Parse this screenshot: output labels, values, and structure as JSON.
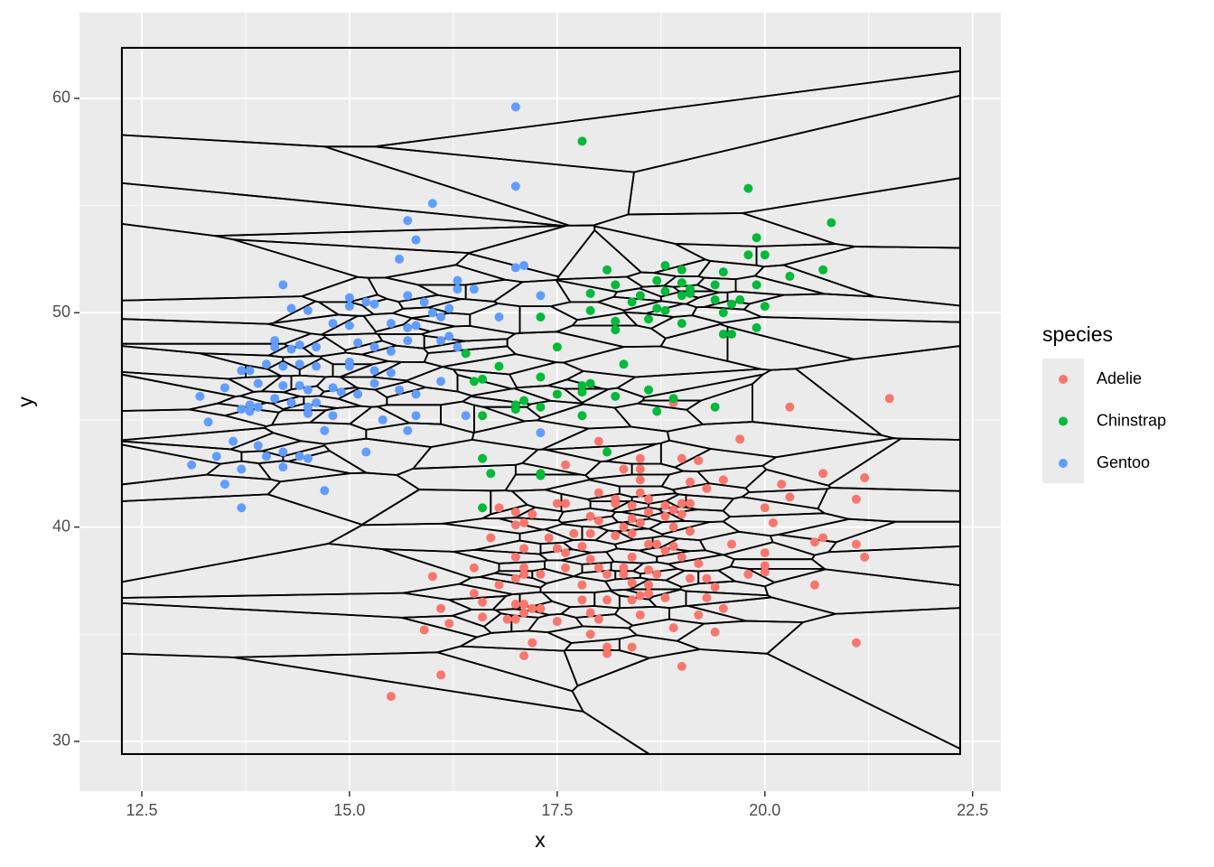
{
  "chart_data": {
    "type": "scatter",
    "x_label": "x",
    "y_label": "y",
    "legend_title": "species",
    "legend": "right",
    "grid": true,
    "voronoi": true,
    "voronoi_xlim": [
      12.26,
      22.35
    ],
    "voronoi_ylim": [
      29.41,
      62.36
    ],
    "xlim": [
      11.75,
      22.84
    ],
    "ylim": [
      27.68,
      64.0
    ],
    "xticks": [
      12.5,
      {
        "value": 15,
        "label": "15.0"
      },
      17.5,
      {
        "value": 20,
        "label": "20.0"
      },
      22.5
    ],
    "yticks": [
      30,
      40,
      50,
      60
    ],
    "series": [
      {
        "name": "Adelie",
        "color": "#F8766D",
        "x": [
          21.5,
          20.3,
          18.9,
          19.7,
          18.0,
          19.0,
          19.2,
          18.5,
          17.6,
          18.3,
          18.5,
          20.7,
          21.2,
          19.5,
          19.1,
          18.5,
          19.3,
          20.2,
          18.0,
          18.2,
          18.5,
          18.6,
          20.3,
          21.1,
          17.5,
          17.6,
          18.2,
          18.4,
          18.8,
          19.0,
          19.1,
          16.8,
          18.9,
          19.0,
          20.0,
          18.8,
          18.6,
          17.0,
          17.2,
          17.9,
          18.0,
          18.4,
          17.1,
          17.0,
          20.1,
          18.5,
          18.3,
          18.9,
          19.1,
          16.7,
          17.4,
          17.7,
          17.9,
          18.2,
          18.4,
          20.7,
          20.6,
          19.6,
          21.1,
          18.6,
          18.7,
          17.1,
          17.5,
          17.6,
          17.8,
          18.8,
          18.9,
          21.2,
          20.0,
          17.9,
          19.0,
          18.4,
          16.5,
          17.0,
          17.1,
          17.6,
          18.0,
          18.3,
          18.6,
          19.2,
          20.0,
          20.0,
          19.8,
          17.1,
          17.3,
          18.1,
          18.3,
          19.1,
          19.3,
          18.7,
          16.0,
          17.0,
          17.8,
          18.4,
          18.6,
          19.4,
          20.6,
          16.5,
          16.8,
          18.5,
          18.6,
          18.8,
          19.3,
          16.6,
          17.0,
          17.1,
          17.8,
          18.1,
          18.4,
          17.2,
          16.1,
          17.3,
          17.1,
          17.9,
          19.5,
          16.6,
          17.0,
          16.9,
          17.5,
          18.0,
          18.5,
          19.2,
          16.2,
          15.9,
          18.9,
          19.4,
          17.9,
          17.2,
          18.1,
          18.4,
          21.1,
          17.1,
          18.1,
          19.0,
          16.1,
          15.5
        ],
        "values": [
          46.0,
          45.6,
          45.8,
          44.1,
          44.0,
          43.2,
          43.1,
          43.2,
          42.9,
          42.7,
          42.7,
          42.5,
          42.3,
          42.2,
          42.1,
          42.2,
          41.8,
          42.0,
          41.6,
          41.3,
          41.6,
          41.3,
          41.4,
          41.3,
          41.1,
          41.1,
          41.1,
          41.0,
          41.0,
          41.1,
          41.1,
          40.9,
          40.8,
          40.6,
          40.9,
          40.5,
          40.7,
          40.7,
          40.6,
          40.5,
          40.3,
          40.4,
          40.2,
          40.1,
          40.2,
          40.2,
          40.0,
          40.0,
          39.8,
          39.5,
          39.5,
          39.7,
          39.7,
          39.6,
          39.7,
          39.5,
          39.3,
          39.2,
          39.2,
          39.2,
          39.2,
          39.0,
          39.0,
          38.8,
          39.1,
          38.9,
          39.1,
          38.6,
          38.8,
          38.5,
          38.6,
          38.6,
          38.1,
          38.6,
          38.1,
          38.1,
          38.1,
          38.1,
          38.0,
          38.3,
          38.2,
          37.9,
          37.8,
          37.8,
          37.8,
          37.8,
          37.8,
          37.6,
          37.6,
          37.8,
          37.7,
          37.6,
          37.3,
          37.4,
          37.3,
          37.2,
          37.3,
          36.9,
          37.3,
          36.8,
          36.9,
          36.7,
          36.7,
          36.5,
          36.4,
          36.4,
          36.6,
          36.6,
          36.6,
          36.2,
          36.2,
          36.2,
          36.0,
          36.0,
          36.2,
          35.8,
          35.7,
          35.7,
          35.6,
          35.7,
          35.9,
          35.9,
          35.5,
          35.2,
          35.3,
          35.1,
          35.0,
          34.6,
          34.4,
          34.4,
          34.6,
          34.0,
          34.1,
          33.5,
          33.1,
          32.1
        ]
      },
      {
        "name": "Chinstrap",
        "color": "#00BA38",
        "x": [
          17.8,
          19.8,
          20.8,
          19.9,
          20.0,
          19.8,
          18.1,
          18.8,
          19.0,
          19.5,
          20.7,
          20.3,
          18.2,
          18.7,
          19.0,
          19.1,
          19.4,
          19.9,
          17.9,
          18.5,
          18.8,
          19.0,
          19.1,
          19.4,
          19.7,
          18.4,
          18.7,
          18.8,
          19.5,
          19.6,
          20.0,
          17.9,
          17.3,
          18.2,
          18.6,
          19.0,
          18.2,
          19.9,
          19.5,
          19.6,
          17.5,
          16.4,
          16.8,
          18.3,
          16.5,
          16.6,
          17.3,
          17.8,
          17.9,
          17.8,
          17.5,
          18.2,
          18.6,
          18.9,
          17.1,
          17.0,
          17.3,
          17.0,
          19.4,
          18.7,
          16.6,
          17.8,
          18.1,
          16.6,
          16.7,
          17.3,
          17.3,
          16.6
        ],
        "values": [
          58.0,
          55.8,
          54.2,
          53.5,
          52.7,
          52.7,
          52.0,
          52.2,
          52.0,
          51.9,
          52.0,
          51.7,
          51.3,
          51.5,
          51.4,
          51.1,
          51.3,
          51.3,
          50.9,
          50.8,
          51.0,
          50.8,
          50.9,
          50.6,
          50.6,
          50.5,
          50.2,
          50.1,
          50.0,
          50.4,
          50.3,
          50.1,
          49.8,
          49.6,
          49.7,
          49.5,
          49.2,
          49.3,
          49.0,
          49.0,
          48.4,
          48.1,
          47.5,
          47.6,
          46.8,
          46.9,
          47.0,
          46.6,
          46.7,
          46.3,
          46.2,
          46.1,
          46.4,
          46.0,
          45.9,
          45.7,
          45.6,
          45.5,
          45.6,
          45.4,
          45.2,
          45.2,
          43.5,
          43.2,
          42.5,
          42.5,
          42.4,
          40.9
        ]
      },
      {
        "name": "Gentoo",
        "color": "#619CFF",
        "x": [
          17.0,
          17.0,
          16.0,
          15.7,
          15.8,
          15.6,
          17.0,
          17.1,
          14.2,
          16.3,
          16.5,
          16.3,
          17.3,
          14.3,
          15.0,
          15.0,
          15.2,
          15.3,
          15.7,
          15.9,
          16.0,
          16.2,
          16.8,
          16.1,
          14.5,
          14.8,
          15.0,
          15.5,
          15.7,
          15.8,
          14.1,
          14.1,
          14.4,
          14.3,
          14.6,
          15.1,
          15.3,
          15.5,
          15.7,
          16.1,
          16.2,
          16.3,
          13.7,
          13.8,
          14.0,
          14.2,
          14.4,
          14.6,
          15.0,
          15.0,
          15.3,
          15.5,
          13.5,
          13.9,
          14.2,
          14.4,
          14.5,
          14.8,
          14.9,
          15.1,
          15.3,
          15.6,
          15.8,
          16.1,
          13.2,
          13.8,
          13.7,
          13.9,
          14.1,
          14.3,
          14.5,
          14.6,
          14.5,
          14.8,
          13.8,
          16.4,
          15.8,
          13.3,
          15.4,
          15.7,
          14.7,
          17.3,
          13.6,
          13.9,
          14.0,
          14.2,
          14.4,
          14.5,
          15.2,
          13.4,
          13.1,
          14.2,
          13.7,
          13.5,
          14.7,
          13.7
        ],
        "values": [
          59.6,
          55.9,
          55.1,
          54.3,
          53.4,
          52.5,
          52.1,
          52.2,
          51.3,
          51.5,
          51.1,
          51.1,
          50.8,
          50.2,
          50.7,
          50.3,
          50.5,
          50.4,
          50.8,
          50.5,
          50.0,
          50.2,
          49.8,
          49.8,
          50.1,
          49.5,
          49.4,
          49.5,
          49.3,
          49.4,
          48.7,
          48.4,
          48.5,
          48.3,
          48.4,
          48.6,
          48.4,
          48.2,
          48.7,
          48.7,
          48.9,
          48.4,
          47.3,
          47.3,
          47.6,
          47.5,
          47.6,
          47.5,
          47.7,
          47.5,
          47.3,
          47.2,
          46.5,
          46.7,
          46.6,
          46.6,
          46.4,
          46.5,
          46.3,
          46.2,
          46.7,
          46.4,
          46.2,
          46.8,
          46.1,
          45.7,
          45.5,
          45.6,
          46.0,
          45.8,
          45.6,
          45.8,
          45.3,
          45.2,
          45.4,
          45.2,
          45.2,
          44.9,
          45.0,
          44.5,
          44.5,
          44.4,
          44.0,
          43.8,
          43.3,
          43.5,
          43.3,
          43.2,
          43.5,
          43.3,
          42.9,
          42.8,
          42.7,
          42.0,
          41.7,
          40.9
        ]
      }
    ]
  }
}
